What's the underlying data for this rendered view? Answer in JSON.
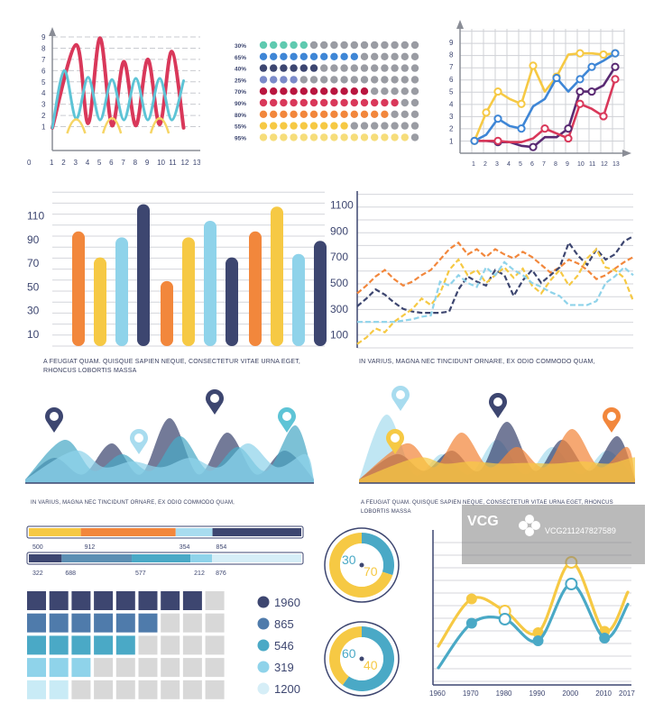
{
  "colors": {
    "navy": "#3d4670",
    "orange": "#f2873c",
    "yellow": "#f6c944",
    "skyblue": "#8fd3ea",
    "lightblue": "#a8dcef",
    "teal": "#4aa9c6",
    "red": "#d9385a",
    "crimson": "#b9163f",
    "purple": "#5a2a73",
    "blue": "#3e86d6",
    "grey": "#9a9ca3",
    "lightgrey": "#d8d8d8"
  },
  "chart_data": [
    {
      "id": "wave-line",
      "type": "line",
      "x": [
        1,
        2,
        3,
        4,
        5,
        6,
        7,
        8,
        9,
        10,
        11,
        12,
        13
      ],
      "xticks": [
        "1",
        "2",
        "3",
        "4",
        "5",
        "6",
        "7",
        "8",
        "9",
        "10",
        "11",
        "12",
        "13"
      ],
      "yticks": [
        "1",
        "2",
        "3",
        "4",
        "5",
        "6",
        "7",
        "8",
        "9"
      ],
      "origin_label": "0",
      "ylim": [
        0,
        9
      ],
      "series": [
        {
          "color": "#d9385a",
          "peaks": [
            [
              3,
              8.3
            ],
            [
              5,
              8.9
            ],
            [
              7,
              6.8
            ],
            [
              9,
              7.0
            ],
            [
              11,
              7.7
            ]
          ],
          "troughs": [
            [
              1,
              0.9
            ],
            [
              4,
              1.3
            ],
            [
              6,
              1.1
            ],
            [
              8,
              1.1
            ],
            [
              10,
              1.2
            ],
            [
              12,
              0.9
            ]
          ]
        },
        {
          "color": "#5ec4d6",
          "peaks": [
            [
              2,
              6.0
            ],
            [
              4,
              5.4
            ],
            [
              6,
              5.2
            ],
            [
              8,
              5.3
            ],
            [
              10,
              5.3
            ],
            [
              12,
              5.1
            ]
          ],
          "troughs": [
            [
              1,
              0.9
            ],
            [
              3,
              1.7
            ],
            [
              5,
              1.6
            ],
            [
              7,
              1.6
            ],
            [
              9,
              1.6
            ],
            [
              11,
              1.6
            ]
          ]
        },
        {
          "color": "#f6d565",
          "peaks": [
            [
              3,
              1.4
            ],
            [
              6,
              1.6
            ],
            [
              10,
              1.6
            ]
          ],
          "troughs": []
        }
      ]
    },
    {
      "id": "dot-bars",
      "type": "bar",
      "categories": [
        "30%",
        "65%",
        "40%",
        "25%",
        "70%",
        "90%",
        "80%",
        "55%",
        "95%"
      ],
      "values": [
        30,
        65,
        40,
        25,
        70,
        90,
        80,
        55,
        95
      ],
      "colors": [
        "#5fcab0",
        "#3e86d6",
        "#3d4670",
        "#7a8ac9",
        "#b9163f",
        "#d9385a",
        "#f2873c",
        "#f6c944",
        "#f6dd7a"
      ],
      "dots_per_row": 16
    },
    {
      "id": "grid-line",
      "type": "line",
      "x": [
        1,
        2,
        3,
        4,
        5,
        6,
        7,
        8,
        9,
        10,
        11,
        12,
        13
      ],
      "xticks": [
        "1",
        "2",
        "3",
        "4",
        "5",
        "6",
        "7",
        "8",
        "9",
        "10",
        "11",
        "12",
        "13"
      ],
      "yticks": [
        "1",
        "2",
        "3",
        "4",
        "5",
        "6",
        "7",
        "8",
        "9"
      ],
      "ylim": [
        0,
        9.5
      ],
      "series": [
        {
          "color": "#f6c944",
          "values": [
            1,
            3.3,
            5,
            4.4,
            4,
            7.1,
            5,
            6.2,
            8,
            8.1,
            8.1,
            8,
            8.1
          ]
        },
        {
          "color": "#3e86d6",
          "values": [
            1,
            1.5,
            2.8,
            2.2,
            2,
            3.8,
            4.4,
            6.1,
            5,
            6,
            7,
            7.5,
            8.1
          ]
        },
        {
          "color": "#5a2a73",
          "values": [
            1,
            1,
            0.9,
            0.9,
            0.6,
            0.5,
            1.3,
            1.3,
            2,
            5,
            5,
            5.5,
            7
          ]
        },
        {
          "color": "#d9385a",
          "values": [
            1,
            1,
            1,
            0.9,
            0.9,
            1.2,
            2,
            1.6,
            1.2,
            4,
            3.6,
            3,
            6
          ]
        }
      ],
      "markers": [
        {
          "series": 0,
          "x": [
            1,
            2,
            3,
            5,
            6,
            8,
            10,
            12,
            13
          ]
        },
        {
          "series": 1,
          "x": [
            1,
            3,
            5,
            8,
            10,
            11,
            13
          ]
        },
        {
          "series": 2,
          "x": [
            3,
            6,
            9,
            10,
            11,
            13
          ]
        },
        {
          "series": 3,
          "x": [
            3,
            7,
            9,
            10,
            12,
            13
          ]
        }
      ]
    },
    {
      "id": "grouped-bars",
      "type": "bar",
      "yticks": [
        "10",
        "30",
        "50",
        "70",
        "90",
        "110"
      ],
      "ylim": [
        0,
        122
      ],
      "groups": [
        {
          "values": [
            97,
            75,
            92,
            120
          ]
        },
        {
          "values": [
            55,
            92,
            106,
            75
          ]
        },
        {
          "values": [
            97,
            118,
            78,
            89
          ]
        }
      ],
      "bar_colors": [
        "#f2873c",
        "#f6c944",
        "#8fd3ea",
        "#3d4670"
      ],
      "caption": "A FEUGIAT QUAM. QUISQUE SAPIEN NEQUE, CONSECTETUR VITAE URNA EGET, RHONCUS LOBORTIS MASSA"
    },
    {
      "id": "dashed-lines",
      "type": "line",
      "yticks": [
        "100",
        "300",
        "500",
        "700",
        "900",
        "1100"
      ],
      "ylim": [
        0,
        1180
      ],
      "x": [
        0,
        1,
        2,
        3,
        4,
        5,
        6,
        7,
        8,
        9,
        10,
        11,
        12,
        13,
        14,
        15,
        16,
        17,
        18,
        19,
        20,
        21,
        22,
        23,
        24,
        25,
        26,
        27,
        28,
        29,
        30
      ],
      "series": [
        {
          "color": "#f2873c",
          "values": [
            420,
            480,
            550,
            600,
            530,
            480,
            510,
            560,
            600,
            680,
            760,
            810,
            720,
            760,
            700,
            760,
            720,
            690,
            740,
            700,
            640,
            580,
            620,
            680,
            650,
            600,
            530,
            560,
            610,
            660,
            700
          ]
        },
        {
          "color": "#3d4670",
          "values": [
            320,
            380,
            450,
            410,
            350,
            300,
            280,
            270,
            270,
            270,
            280,
            450,
            550,
            510,
            480,
            600,
            560,
            400,
            520,
            600,
            500,
            560,
            620,
            810,
            710,
            640,
            760,
            680,
            720,
            820,
            860
          ]
        },
        {
          "color": "#f6c944",
          "values": [
            30,
            80,
            150,
            120,
            200,
            250,
            300,
            380,
            330,
            420,
            600,
            680,
            560,
            600,
            500,
            560,
            620,
            540,
            610,
            480,
            420,
            520,
            600,
            480,
            560,
            690,
            760,
            620,
            600,
            540,
            360
          ]
        },
        {
          "color": "#8fd3ea",
          "values": [
            200,
            200,
            200,
            200,
            200,
            210,
            220,
            240,
            250,
            510,
            480,
            560,
            500,
            470,
            620,
            560,
            660,
            600,
            560,
            500,
            470,
            430,
            400,
            330,
            330,
            330,
            360,
            500,
            550,
            620,
            560
          ]
        }
      ],
      "caption": "IN VARIUS, MAGNA NEC TINCIDUNT ORNARE, EX ODIO COMMODO QUAM,"
    },
    {
      "id": "mountain-left",
      "type": "area",
      "series": [
        {
          "color": "#3d4670",
          "peaks": [
            0.35,
            0.55,
            0.9,
            0.7,
            0.45
          ]
        },
        {
          "color": "#4aa9c6",
          "peaks": [
            0.6,
            0.4,
            0.65,
            0.5,
            0.8
          ]
        },
        {
          "color": "#8fd3ea",
          "peaks": [
            0.45,
            0.3,
            0.35,
            0.55,
            0.4
          ]
        }
      ],
      "pins": [
        {
          "color": "#3d4670"
        },
        {
          "color": "#a8dcef"
        },
        {
          "color": "#3d4670"
        },
        {
          "color": "#5ec4d6"
        }
      ],
      "caption": "IN VARIUS, MAGNA NEC TINCIDUNT ORNARE, EX ODIO COMMODO QUAM,"
    },
    {
      "id": "mountain-right",
      "type": "area",
      "series": [
        {
          "color": "#a8dcef",
          "peaks": [
            0.95,
            0.4,
            0.6,
            0.5,
            0.45
          ]
        },
        {
          "color": "#3d4670",
          "peaks": [
            0.4,
            0.45,
            0.85,
            0.6,
            0.65
          ]
        },
        {
          "color": "#f2873c",
          "peaks": [
            0.55,
            0.7,
            0.5,
            0.75,
            0.5
          ]
        },
        {
          "color": "#f6c944",
          "peaks": [
            0.35,
            0.3,
            0.28,
            0.3,
            0.35
          ]
        }
      ],
      "pins": [
        {
          "color": "#a8dcef"
        },
        {
          "color": "#f6c944"
        },
        {
          "color": "#3d4670"
        },
        {
          "color": "#f2873c"
        }
      ],
      "caption": "A FEUGIAT QUAM. QUISQUE SAPIEN NEQUE, CONSECTETUR VITAE URNA EGET, RHONCUS LOBORTIS MASSA"
    },
    {
      "id": "segment-bar-1",
      "type": "bar",
      "labels": [
        "500",
        "912",
        "354",
        "854"
      ],
      "values": [
        500,
        912,
        354,
        854
      ],
      "colors": [
        "#f6c944",
        "#f2873c",
        "#a8dcef",
        "#3d4670"
      ]
    },
    {
      "id": "segment-bar-2",
      "type": "bar",
      "labels": [
        "322",
        "688",
        "577",
        "212",
        "876"
      ],
      "values": [
        322,
        688,
        577,
        212,
        876
      ],
      "colors": [
        "#3d4670",
        "#5c8fb3",
        "#4aa9c6",
        "#8fd3ea",
        "#d6eef7"
      ]
    },
    {
      "id": "tile-matrix",
      "type": "heatmap",
      "rows": [
        {
          "color": "#3d4670",
          "filled": 8
        },
        {
          "color": "#4f7bab",
          "filled": 6
        },
        {
          "color": "#4aa9c6",
          "filled": 5
        },
        {
          "color": "#8fd3ea",
          "filled": 3
        },
        {
          "color": "#c9ebf6",
          "filled": 2
        }
      ],
      "columns": 9,
      "empty_color": "#d8d8d8"
    },
    {
      "id": "tile-legend",
      "type": "table",
      "entries": [
        {
          "color": "#3d4670",
          "label": "1960"
        },
        {
          "color": "#4f7bab",
          "label": "865"
        },
        {
          "color": "#4aa9c6",
          "label": "546"
        },
        {
          "color": "#8fd3ea",
          "label": "319"
        },
        {
          "color": "#d6eef7",
          "label": "1200"
        }
      ]
    },
    {
      "id": "donut-1",
      "type": "pie",
      "slices": [
        {
          "label": "30",
          "value": 30,
          "color": "#4aa9c6"
        },
        {
          "label": "70",
          "value": 70,
          "color": "#f6c944"
        }
      ]
    },
    {
      "id": "donut-2",
      "type": "pie",
      "slices": [
        {
          "label": "60",
          "value": 60,
          "color": "#4aa9c6"
        },
        {
          "label": "40",
          "value": 40,
          "color": "#f6c944"
        }
      ]
    },
    {
      "id": "year-curves",
      "type": "line",
      "xticks": [
        "1960",
        "1970",
        "1980",
        "1990",
        "2000",
        "2010",
        "2017"
      ],
      "x": [
        1960,
        1970,
        1980,
        1990,
        2000,
        2010,
        2017
      ],
      "ylim": [
        0,
        10
      ],
      "series": [
        {
          "color": "#f6c944",
          "values": [
            2.6,
            6.1,
            5.2,
            3.6,
            8.8,
            3.7,
            6.6
          ]
        },
        {
          "color": "#4aa9c6",
          "values": [
            1.0,
            4.3,
            4.6,
            3.0,
            7.2,
            3.2,
            5.7
          ]
        }
      ]
    }
  ],
  "watermark": {
    "brand": "VCG",
    "id": "VCG211247827589"
  }
}
